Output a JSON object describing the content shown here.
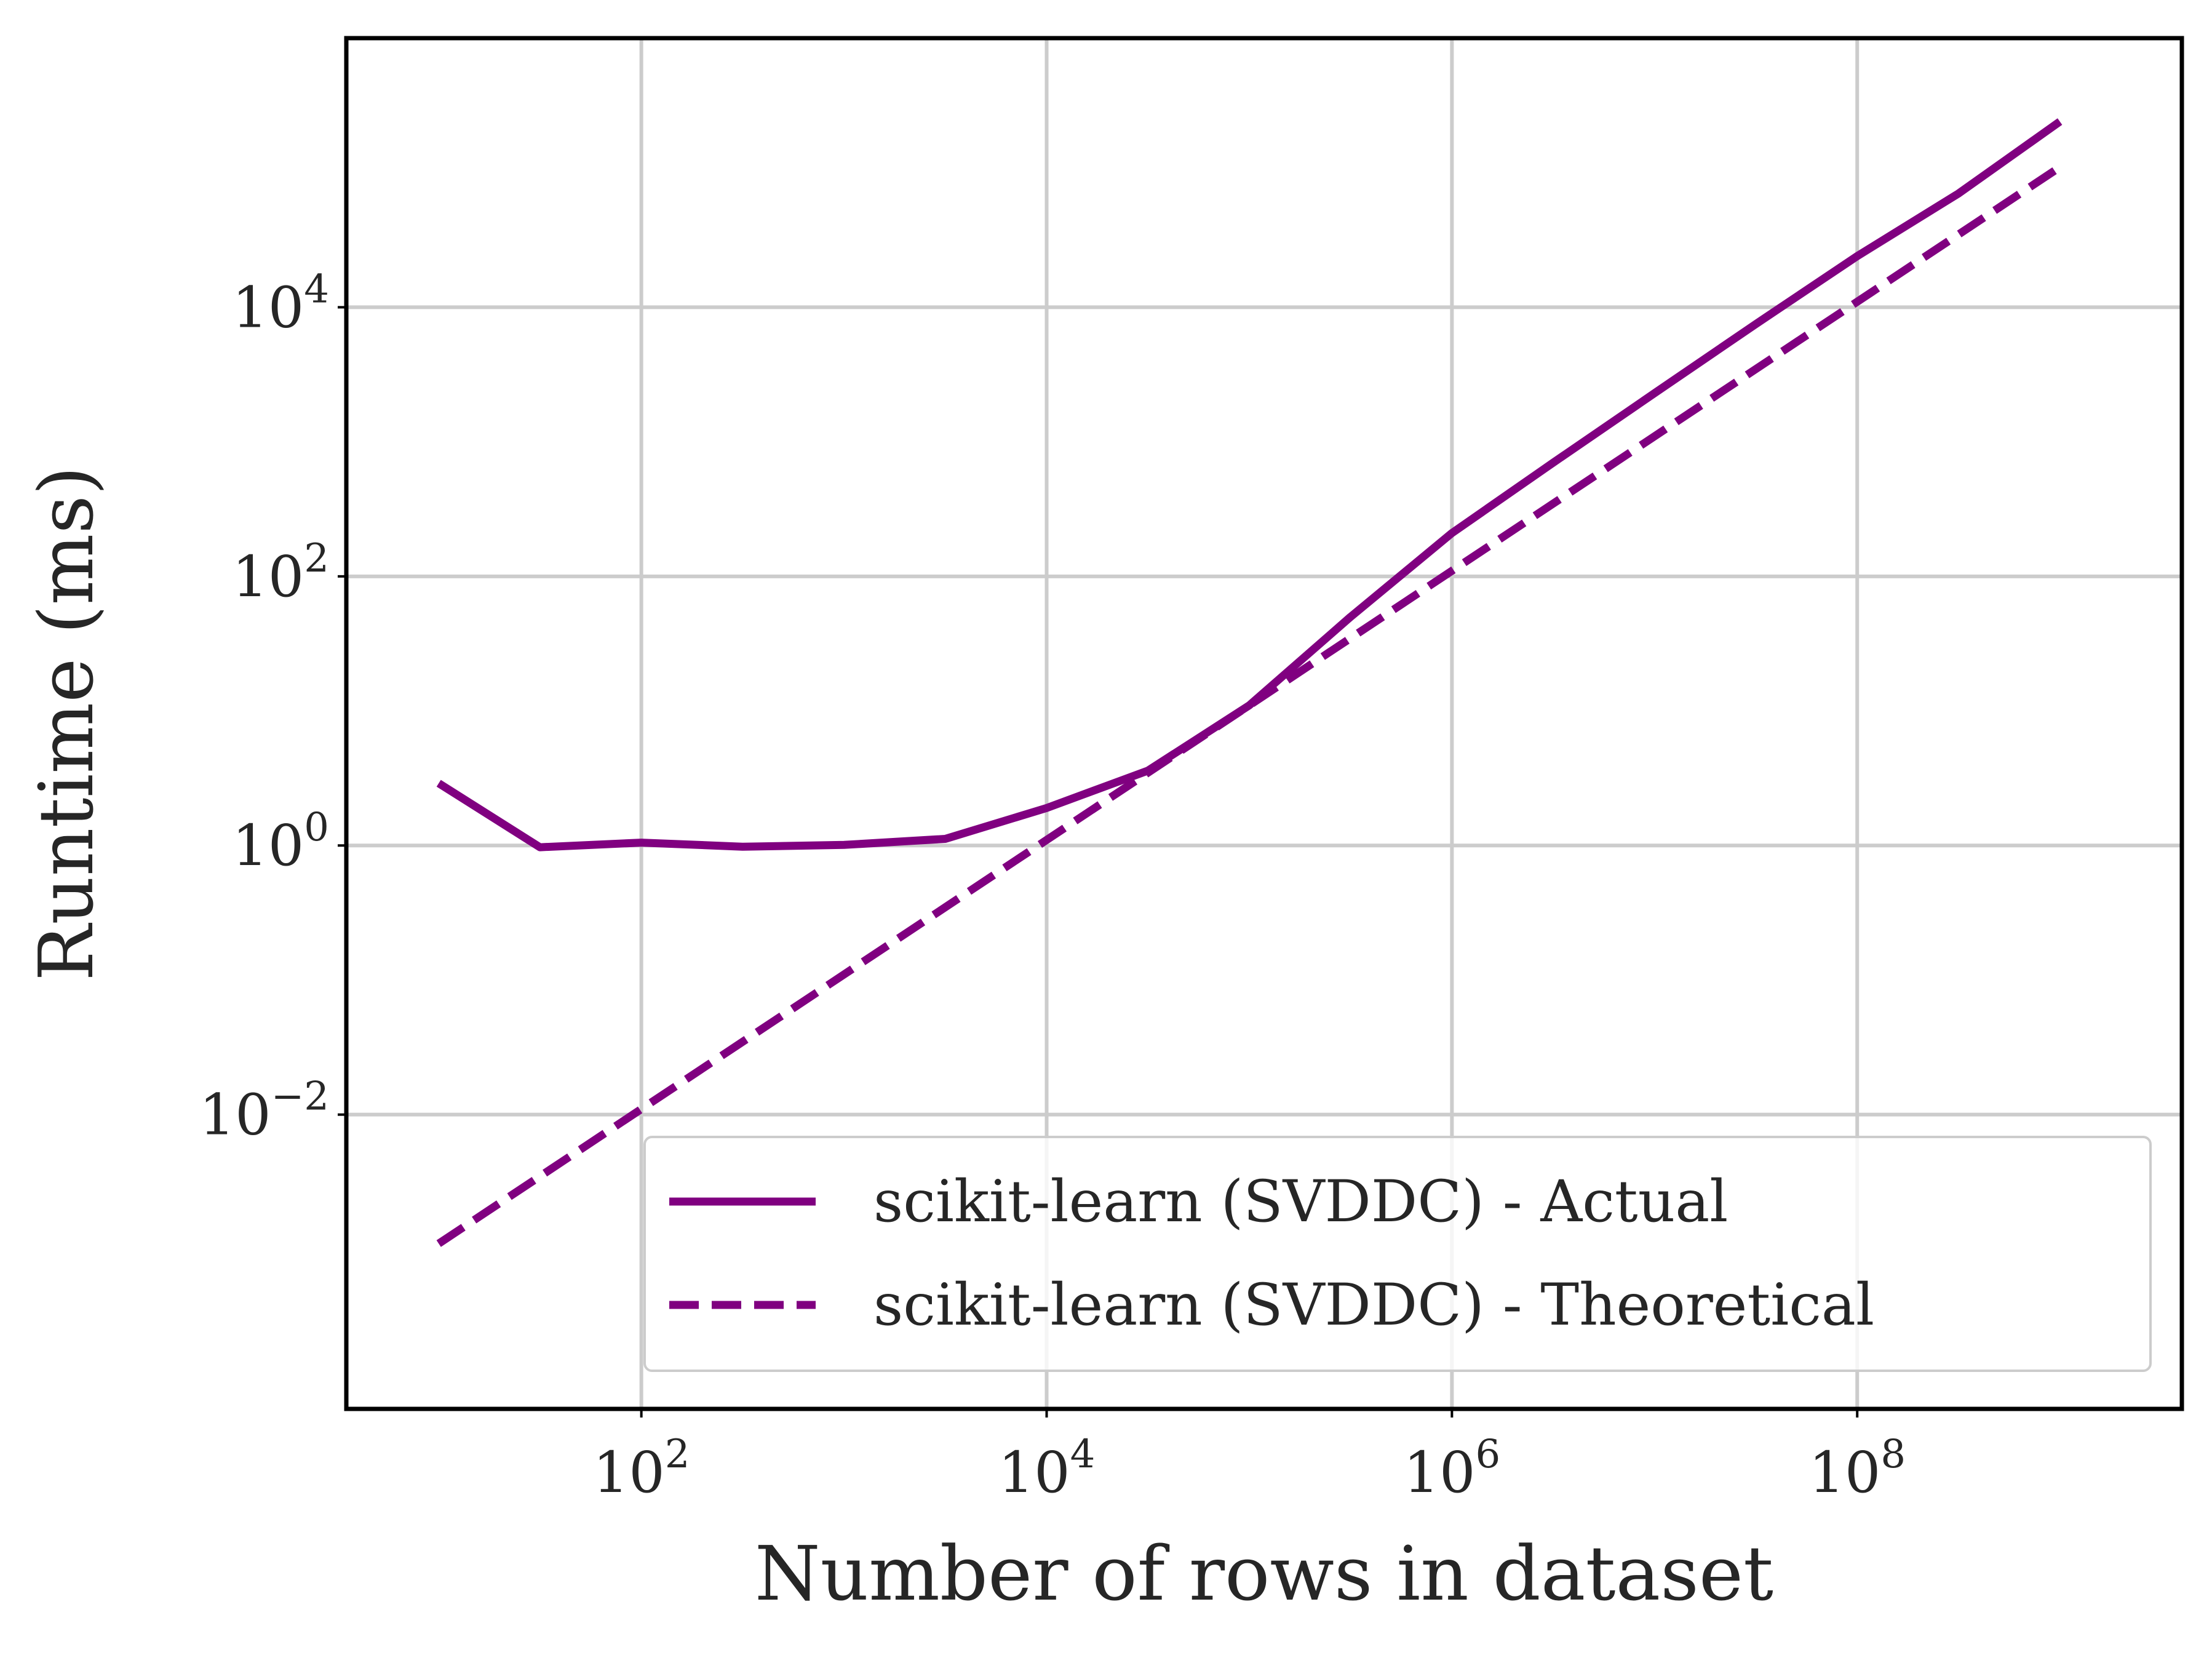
{
  "chart_data": {
    "type": "line",
    "xlabel": "Number of rows in dataset",
    "ylabel": "Runtime (ms)",
    "x_scale": "log",
    "y_scale": "log",
    "xlim": [
      3.5,
      4000000000
    ],
    "ylim": [
      6.5e-05,
      1000000
    ],
    "x_ticks": [
      {
        "value": 100,
        "base": "10",
        "exp": "2"
      },
      {
        "value": 10000,
        "base": "10",
        "exp": "4"
      },
      {
        "value": 1000000,
        "base": "10",
        "exp": "6"
      },
      {
        "value": 100000000,
        "base": "10",
        "exp": "8"
      }
    ],
    "y_ticks": [
      {
        "value": 0.01,
        "base": "10",
        "exp": "−2"
      },
      {
        "value": 1,
        "base": "10",
        "exp": "0"
      },
      {
        "value": 100,
        "base": "10",
        "exp": "2"
      },
      {
        "value": 10000,
        "base": "10",
        "exp": "4"
      }
    ],
    "grid": true,
    "legend_position": "lower-right",
    "series": [
      {
        "name": "scikit-learn (SVDDC) - Actual",
        "style": "solid",
        "color": "#800080",
        "x": [
          10,
          31.6,
          100,
          316,
          1000,
          3160,
          10000,
          31600,
          100000,
          316000,
          1000000,
          3160000,
          10000000,
          31600000,
          100000000,
          316000000,
          1000000000
        ],
        "y": [
          2.9,
          0.97,
          1.05,
          0.98,
          1.01,
          1.12,
          1.9,
          3.6,
          11,
          50,
          210,
          700,
          2300,
          7500,
          24000,
          70000,
          240000
        ]
      },
      {
        "name": "scikit-learn (SVDDC) - Theoretical",
        "style": "dashed",
        "color": "#800080",
        "x": [
          10,
          1000000000
        ],
        "y": [
          0.0011,
          110000
        ]
      }
    ]
  }
}
